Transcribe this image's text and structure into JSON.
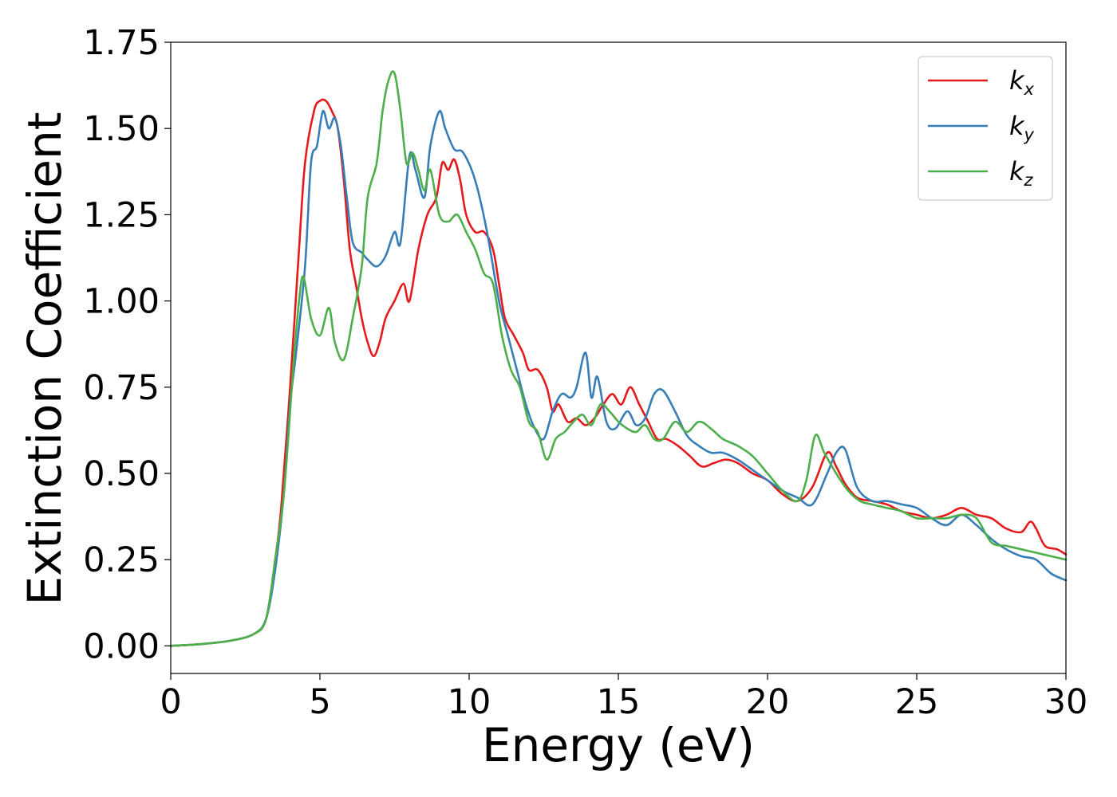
{
  "chart_data": {
    "type": "line",
    "xlabel": "Energy (eV)",
    "ylabel": "Extinction Coefficient",
    "xlim": [
      0,
      30
    ],
    "ylim": [
      -0.08,
      1.75
    ],
    "xticks": [
      0,
      5,
      10,
      15,
      20,
      25,
      30
    ],
    "xtick_labels": [
      "0",
      "5",
      "10",
      "15",
      "20",
      "25",
      "30"
    ],
    "yticks": [
      0,
      0.25,
      0.5,
      0.75,
      1.0,
      1.25,
      1.5,
      1.75
    ],
    "ytick_labels": [
      "0.00",
      "0.25",
      "0.50",
      "0.75",
      "1.00",
      "1.25",
      "1.50",
      "1.75"
    ],
    "grid": false,
    "legend_position": "top-right",
    "series": [
      {
        "name": "k",
        "subscript": "x",
        "color": "#e41a1c",
        "points": [
          [
            0,
            0
          ],
          [
            1,
            0.005
          ],
          [
            2,
            0.015
          ],
          [
            2.8,
            0.035
          ],
          [
            3.2,
            0.08
          ],
          [
            3.5,
            0.25
          ],
          [
            3.7,
            0.4
          ],
          [
            4.0,
            0.75
          ],
          [
            4.3,
            1.15
          ],
          [
            4.5,
            1.4
          ],
          [
            4.8,
            1.55
          ],
          [
            5.0,
            1.58
          ],
          [
            5.2,
            1.58
          ],
          [
            5.4,
            1.55
          ],
          [
            5.6,
            1.5
          ],
          [
            5.8,
            1.35
          ],
          [
            6.0,
            1.15
          ],
          [
            6.2,
            1.05
          ],
          [
            6.4,
            0.95
          ],
          [
            6.6,
            0.88
          ],
          [
            6.8,
            0.84
          ],
          [
            7.0,
            0.88
          ],
          [
            7.2,
            0.95
          ],
          [
            7.5,
            1.0
          ],
          [
            7.8,
            1.05
          ],
          [
            8.0,
            1.0
          ],
          [
            8.3,
            1.15
          ],
          [
            8.6,
            1.25
          ],
          [
            8.9,
            1.3
          ],
          [
            9.1,
            1.4
          ],
          [
            9.3,
            1.38
          ],
          [
            9.5,
            1.41
          ],
          [
            9.7,
            1.35
          ],
          [
            9.9,
            1.25
          ],
          [
            10.2,
            1.2
          ],
          [
            10.5,
            1.2
          ],
          [
            10.8,
            1.15
          ],
          [
            11.0,
            1.05
          ],
          [
            11.2,
            0.95
          ],
          [
            11.5,
            0.9
          ],
          [
            11.8,
            0.85
          ],
          [
            12.0,
            0.8
          ],
          [
            12.3,
            0.8
          ],
          [
            12.6,
            0.75
          ],
          [
            12.8,
            0.68
          ],
          [
            13.0,
            0.7
          ],
          [
            13.3,
            0.65
          ],
          [
            13.6,
            0.66
          ],
          [
            13.9,
            0.64
          ],
          [
            14.2,
            0.66
          ],
          [
            14.5,
            0.7
          ],
          [
            14.8,
            0.73
          ],
          [
            15.1,
            0.7
          ],
          [
            15.4,
            0.75
          ],
          [
            15.7,
            0.7
          ],
          [
            16.0,
            0.65
          ],
          [
            16.3,
            0.6
          ],
          [
            16.6,
            0.6
          ],
          [
            17.0,
            0.58
          ],
          [
            17.4,
            0.55
          ],
          [
            17.8,
            0.52
          ],
          [
            18.2,
            0.53
          ],
          [
            18.6,
            0.54
          ],
          [
            19.0,
            0.53
          ],
          [
            19.5,
            0.5
          ],
          [
            20.0,
            0.48
          ],
          [
            20.5,
            0.44
          ],
          [
            21.0,
            0.42
          ],
          [
            21.5,
            0.46
          ],
          [
            22.0,
            0.56
          ],
          [
            22.3,
            0.52
          ],
          [
            22.6,
            0.47
          ],
          [
            23.0,
            0.43
          ],
          [
            23.5,
            0.42
          ],
          [
            24.0,
            0.41
          ],
          [
            24.5,
            0.39
          ],
          [
            25.0,
            0.38
          ],
          [
            25.5,
            0.37
          ],
          [
            26.0,
            0.38
          ],
          [
            26.5,
            0.4
          ],
          [
            27.0,
            0.38
          ],
          [
            27.5,
            0.37
          ],
          [
            28.0,
            0.34
          ],
          [
            28.5,
            0.33
          ],
          [
            28.8,
            0.36
          ],
          [
            29.0,
            0.34
          ],
          [
            29.3,
            0.29
          ],
          [
            29.7,
            0.28
          ],
          [
            30.0,
            0.265
          ]
        ]
      },
      {
        "name": "k",
        "subscript": "y",
        "color": "#377eb8",
        "points": [
          [
            0,
            0
          ],
          [
            1,
            0.005
          ],
          [
            2,
            0.015
          ],
          [
            2.8,
            0.035
          ],
          [
            3.2,
            0.08
          ],
          [
            3.5,
            0.22
          ],
          [
            3.8,
            0.45
          ],
          [
            4.0,
            0.7
          ],
          [
            4.2,
            0.85
          ],
          [
            4.5,
            1.1
          ],
          [
            4.7,
            1.4
          ],
          [
            4.9,
            1.45
          ],
          [
            5.1,
            1.55
          ],
          [
            5.3,
            1.5
          ],
          [
            5.5,
            1.53
          ],
          [
            5.7,
            1.45
          ],
          [
            5.9,
            1.3
          ],
          [
            6.1,
            1.17
          ],
          [
            6.4,
            1.14
          ],
          [
            6.6,
            1.12
          ],
          [
            6.9,
            1.1
          ],
          [
            7.2,
            1.13
          ],
          [
            7.5,
            1.2
          ],
          [
            7.7,
            1.17
          ],
          [
            8.0,
            1.42
          ],
          [
            8.2,
            1.38
          ],
          [
            8.5,
            1.3
          ],
          [
            8.7,
            1.45
          ],
          [
            9.0,
            1.55
          ],
          [
            9.2,
            1.5
          ],
          [
            9.5,
            1.44
          ],
          [
            9.8,
            1.43
          ],
          [
            10.2,
            1.35
          ],
          [
            10.6,
            1.2
          ],
          [
            11.0,
            1.0
          ],
          [
            11.3,
            0.9
          ],
          [
            11.6,
            0.8
          ],
          [
            11.9,
            0.7
          ],
          [
            12.2,
            0.63
          ],
          [
            12.5,
            0.6
          ],
          [
            12.8,
            0.68
          ],
          [
            13.1,
            0.73
          ],
          [
            13.4,
            0.72
          ],
          [
            13.6,
            0.75
          ],
          [
            13.9,
            0.85
          ],
          [
            14.1,
            0.72
          ],
          [
            14.3,
            0.78
          ],
          [
            14.6,
            0.65
          ],
          [
            14.9,
            0.63
          ],
          [
            15.3,
            0.68
          ],
          [
            15.6,
            0.64
          ],
          [
            15.9,
            0.66
          ],
          [
            16.2,
            0.73
          ],
          [
            16.5,
            0.74
          ],
          [
            16.9,
            0.68
          ],
          [
            17.3,
            0.61
          ],
          [
            17.7,
            0.58
          ],
          [
            18.1,
            0.56
          ],
          [
            18.5,
            0.56
          ],
          [
            19.0,
            0.54
          ],
          [
            19.5,
            0.51
          ],
          [
            20.0,
            0.48
          ],
          [
            20.5,
            0.45
          ],
          [
            21.0,
            0.43
          ],
          [
            21.5,
            0.41
          ],
          [
            22.0,
            0.5
          ],
          [
            22.3,
            0.56
          ],
          [
            22.6,
            0.57
          ],
          [
            23.0,
            0.46
          ],
          [
            23.5,
            0.42
          ],
          [
            24.0,
            0.42
          ],
          [
            24.5,
            0.41
          ],
          [
            25.0,
            0.4
          ],
          [
            25.5,
            0.37
          ],
          [
            26.0,
            0.35
          ],
          [
            26.5,
            0.38
          ],
          [
            27.0,
            0.35
          ],
          [
            27.5,
            0.31
          ],
          [
            28.0,
            0.28
          ],
          [
            28.5,
            0.26
          ],
          [
            29.0,
            0.25
          ],
          [
            29.5,
            0.21
          ],
          [
            30.0,
            0.19
          ]
        ]
      },
      {
        "name": "k",
        "subscript": "z",
        "color": "#4daf4a",
        "points": [
          [
            0,
            0
          ],
          [
            1,
            0.005
          ],
          [
            2,
            0.015
          ],
          [
            2.8,
            0.035
          ],
          [
            3.2,
            0.08
          ],
          [
            3.5,
            0.25
          ],
          [
            3.8,
            0.45
          ],
          [
            4.1,
            0.8
          ],
          [
            4.3,
            1.0
          ],
          [
            4.45,
            1.07
          ],
          [
            4.7,
            0.95
          ],
          [
            5.0,
            0.9
          ],
          [
            5.3,
            0.98
          ],
          [
            5.5,
            0.88
          ],
          [
            5.8,
            0.83
          ],
          [
            6.1,
            0.95
          ],
          [
            6.4,
            1.1
          ],
          [
            6.6,
            1.3
          ],
          [
            6.9,
            1.4
          ],
          [
            7.1,
            1.55
          ],
          [
            7.3,
            1.64
          ],
          [
            7.5,
            1.66
          ],
          [
            7.7,
            1.55
          ],
          [
            7.9,
            1.4
          ],
          [
            8.1,
            1.43
          ],
          [
            8.3,
            1.38
          ],
          [
            8.5,
            1.32
          ],
          [
            8.7,
            1.38
          ],
          [
            9.0,
            1.25
          ],
          [
            9.3,
            1.23
          ],
          [
            9.6,
            1.25
          ],
          [
            9.9,
            1.2
          ],
          [
            10.2,
            1.15
          ],
          [
            10.5,
            1.08
          ],
          [
            10.8,
            1.05
          ],
          [
            11.1,
            0.9
          ],
          [
            11.4,
            0.8
          ],
          [
            11.7,
            0.75
          ],
          [
            12.0,
            0.65
          ],
          [
            12.3,
            0.62
          ],
          [
            12.6,
            0.54
          ],
          [
            12.9,
            0.6
          ],
          [
            13.2,
            0.62
          ],
          [
            13.5,
            0.65
          ],
          [
            13.8,
            0.67
          ],
          [
            14.1,
            0.64
          ],
          [
            14.4,
            0.7
          ],
          [
            14.7,
            0.68
          ],
          [
            15.0,
            0.65
          ],
          [
            15.3,
            0.63
          ],
          [
            15.6,
            0.62
          ],
          [
            15.9,
            0.64
          ],
          [
            16.2,
            0.6
          ],
          [
            16.5,
            0.6
          ],
          [
            16.9,
            0.65
          ],
          [
            17.3,
            0.62
          ],
          [
            17.7,
            0.65
          ],
          [
            18.1,
            0.63
          ],
          [
            18.5,
            0.6
          ],
          [
            19.0,
            0.58
          ],
          [
            19.5,
            0.55
          ],
          [
            20.0,
            0.5
          ],
          [
            20.5,
            0.45
          ],
          [
            21.0,
            0.42
          ],
          [
            21.3,
            0.48
          ],
          [
            21.6,
            0.61
          ],
          [
            21.9,
            0.56
          ],
          [
            22.3,
            0.5
          ],
          [
            22.7,
            0.45
          ],
          [
            23.1,
            0.42
          ],
          [
            23.5,
            0.41
          ],
          [
            24.0,
            0.4
          ],
          [
            24.5,
            0.39
          ],
          [
            25.0,
            0.37
          ],
          [
            25.5,
            0.37
          ],
          [
            26.0,
            0.37
          ],
          [
            26.5,
            0.38
          ],
          [
            27.0,
            0.37
          ],
          [
            27.5,
            0.3
          ],
          [
            28.0,
            0.29
          ],
          [
            28.5,
            0.28
          ],
          [
            29.0,
            0.27
          ],
          [
            29.5,
            0.26
          ],
          [
            30.0,
            0.25
          ]
        ]
      }
    ]
  }
}
